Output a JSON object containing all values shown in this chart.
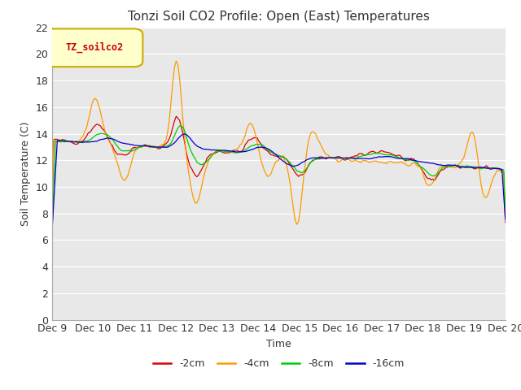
{
  "title": "Tonzi Soil CO2 Profile: Open (East) Temperatures",
  "xlabel": "Time",
  "ylabel": "Soil Temperature (C)",
  "ylim": [
    0,
    22
  ],
  "yticks": [
    0,
    2,
    4,
    6,
    8,
    10,
    12,
    14,
    16,
    18,
    20,
    22
  ],
  "xtick_labels": [
    "Dec 9",
    "Dec 10",
    "Dec 11",
    "Dec 12",
    "Dec 13",
    "Dec 14",
    "Dec 15",
    "Dec 16",
    "Dec 17",
    "Dec 18",
    "Dec 19",
    "Dec 20"
  ],
  "legend_label": "TZ_soilco2",
  "series_labels": [
    "-2cm",
    "-4cm",
    "-8cm",
    "-16cm"
  ],
  "series_colors": [
    "#dd0000",
    "#ff9900",
    "#00cc00",
    "#0000cc"
  ],
  "fig_bg_color": "#ffffff",
  "plot_bg_color": "#e8e8e8",
  "title_fontsize": 11,
  "axis_fontsize": 9,
  "tick_fontsize": 9,
  "n_points": 264
}
